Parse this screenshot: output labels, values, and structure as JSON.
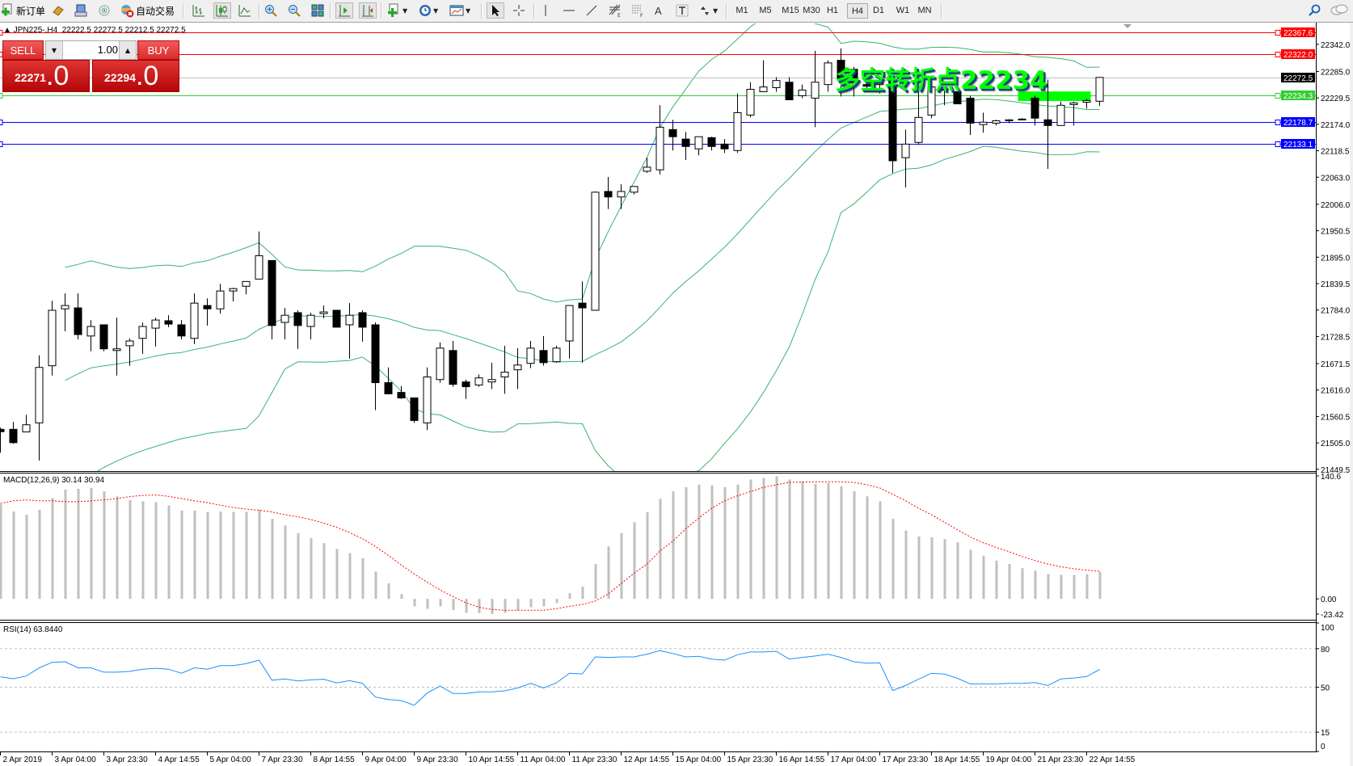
{
  "toolbar": {
    "new_order_label": "新订单",
    "auto_trading_label": "自动交易",
    "timeframes": [
      "M1",
      "M5",
      "M15",
      "M30",
      "H1",
      "H4",
      "D1",
      "W1",
      "MN"
    ],
    "active_timeframe": "H4",
    "icons": [
      "new-order-icon",
      "market-watch-icon",
      "navigator-icon",
      "signals-icon",
      "auto-trading-icon",
      "bar-chart-icon",
      "candlestick-icon",
      "line-chart-icon",
      "zoom-in-icon",
      "zoom-out-icon",
      "tile-windows-icon",
      "auto-scroll-icon",
      "chart-shift-icon",
      "indicators-icon",
      "periods-icon",
      "templates-icon",
      "cursor-icon",
      "crosshair-icon",
      "vertical-line-icon",
      "horizontal-line-icon",
      "trendline-icon",
      "fibonacci-icon",
      "fibonacci-fan-icon",
      "text-icon",
      "text-label-icon",
      "arrows-icon",
      "search-icon",
      "chat-icon"
    ]
  },
  "chart_header": {
    "symbol": "JPN225-,H4",
    "ohlc": "22222.5 22272.5 22212.5 22272.5"
  },
  "one_click": {
    "sell_label": "SELL",
    "buy_label": "BUY",
    "lot": "1.00",
    "sell_price_main": "22271",
    "sell_price_frac": ".0",
    "buy_price_main": "22294",
    "buy_price_frac": ".0"
  },
  "annotation": {
    "text": "多空转折点22234",
    "color": "#00ff00"
  },
  "colors": {
    "bollinger": "#3cb371",
    "macd_hist": "#c0c0c0",
    "macd_signal": "#ff0000",
    "rsi": "#1e90ff",
    "bull_body": "#ffffff",
    "bear_body": "#000000"
  },
  "chart_data": {
    "type": "candlestick",
    "symbol": "JPN225-",
    "timeframe": "H4",
    "ylim": [
      21445.8,
      22385.9
    ],
    "grid": false,
    "price_ticks": [
      "22342.0",
      "22285.0",
      "22229.5",
      "22174.0",
      "22118.5",
      "22063.0",
      "22006.0",
      "21950.5",
      "21895.0",
      "21839.5",
      "21784.0",
      "21728.5",
      "21671.5",
      "21616.0",
      "21560.5",
      "21505.0",
      "21449.5"
    ],
    "time_labels": [
      "2 Apr 2019",
      "3 Apr 04:00",
      "3 Apr 23:30",
      "4 Apr 14:55",
      "5 Apr 04:00",
      "7 Apr 23:30",
      "8 Apr 14:55",
      "9 Apr 04:00",
      "9 Apr 23:30",
      "10 Apr 14:55",
      "11 Apr 04:00",
      "11 Apr 23:30",
      "12 Apr 14:55",
      "15 Apr 04:00",
      "15 Apr 23:30",
      "16 Apr 14:55",
      "17 Apr 04:00",
      "17 Apr 23:30",
      "18 Apr 14:55",
      "19 Apr 04:00",
      "21 Apr 23:30",
      "22 Apr 14:55"
    ],
    "time_label_every": 4,
    "ohlc": [
      [
        21533.5,
        21537,
        21484.5,
        21528.5
      ],
      [
        21533.5,
        21549,
        21503,
        21505.5
      ],
      [
        21528,
        21564,
        21528,
        21543
      ],
      [
        21547,
        21689,
        21468,
        21663.5
      ],
      [
        21667,
        21803.5,
        21646.5,
        21783.5
      ],
      [
        21786.5,
        21819,
        21739.5,
        21793.5
      ],
      [
        21788.5,
        21819,
        21722.5,
        21732.5
      ],
      [
        21729.5,
        21763,
        21697.5,
        21749.5
      ],
      [
        21753,
        21753,
        21697.5,
        21702.5
      ],
      [
        21699,
        21768,
        21646.5,
        21702.5
      ],
      [
        21709,
        21724.5,
        21667,
        21719
      ],
      [
        21724.5,
        21758,
        21692,
        21749.5
      ],
      [
        21746,
        21768,
        21707.5,
        21763
      ],
      [
        21761.5,
        21773,
        21748,
        21754.5
      ],
      [
        21753,
        21763,
        21722.5,
        21729.5
      ],
      [
        21724.5,
        21819,
        21712.5,
        21798.5
      ],
      [
        21793.5,
        21808.5,
        21751.5,
        21786.5
      ],
      [
        21786.5,
        21839,
        21776.5,
        21824
      ],
      [
        21824,
        21830.5,
        21802,
        21829
      ],
      [
        21834,
        21844,
        21817,
        21844
      ],
      [
        21849,
        21949,
        21849,
        21898
      ],
      [
        21888,
        21888,
        21722.5,
        21751.5
      ],
      [
        21758,
        21788.5,
        21722.5,
        21773
      ],
      [
        21778.5,
        21783.5,
        21702.5,
        21751.5
      ],
      [
        21749.5,
        21778.5,
        21722.5,
        21773
      ],
      [
        21776.5,
        21793.5,
        21766.5,
        21780
      ],
      [
        21783.5,
        21783.5,
        21748,
        21748
      ],
      [
        21753,
        21798.5,
        21682,
        21773
      ],
      [
        21778.5,
        21783.5,
        21717.5,
        21748
      ],
      [
        21753,
        21758,
        21574,
        21631.5
      ],
      [
        21631.5,
        21663.5,
        21608,
        21608
      ],
      [
        21611,
        21624.5,
        21597.5,
        21599.5
      ],
      [
        21599.5,
        21599.5,
        21547,
        21552
      ],
      [
        21547,
        21663.5,
        21532,
        21643.5
      ],
      [
        21638,
        21716,
        21631.5,
        21704
      ],
      [
        21699,
        21719,
        21623,
        21628
      ],
      [
        21633,
        21638,
        21597.5,
        21623
      ],
      [
        21626.5,
        21648.5,
        21623,
        21641.5
      ],
      [
        21633,
        21673.5,
        21618,
        21638
      ],
      [
        21643.5,
        21709,
        21608,
        21653.5
      ],
      [
        21658.5,
        21704,
        21618,
        21668.5
      ],
      [
        21672,
        21719,
        21662,
        21704
      ],
      [
        21699,
        21729.5,
        21667,
        21673.5
      ],
      [
        21675.5,
        21709,
        21673.5,
        21704
      ],
      [
        21719,
        21793.5,
        21682,
        21793.5
      ],
      [
        21798.5,
        21844,
        21673.5,
        21788.5
      ],
      [
        21783.5,
        22033,
        21783.5,
        22031.5
      ],
      [
        22033,
        22063.5,
        21996,
        22021.5
      ],
      [
        22021.5,
        22048.5,
        21996,
        22033
      ],
      [
        22031.5,
        22043.5,
        22026.5,
        22043.5
      ],
      [
        22075.5,
        22104,
        22072,
        22084
      ],
      [
        22078.5,
        22214,
        22068.5,
        22168
      ],
      [
        22163,
        22183.5,
        22119,
        22148
      ],
      [
        22143,
        22158,
        22099,
        22127.5
      ],
      [
        22122.5,
        22148,
        22109,
        22148
      ],
      [
        22146,
        22148,
        22119,
        22127.5
      ],
      [
        22132.5,
        22143,
        22114,
        22122.5
      ],
      [
        22119,
        22239,
        22114,
        22198.5
      ],
      [
        22193.5,
        22262.5,
        22188.5,
        22247.5
      ],
      [
        22242.5,
        22308.5,
        22242.5,
        22252.5
      ],
      [
        22251,
        22273,
        22242.5,
        22266
      ],
      [
        22262.5,
        22273,
        22225.5,
        22225.5
      ],
      [
        22234,
        22257.5,
        22229,
        22246
      ],
      [
        22229,
        22328.5,
        22168,
        22262.5
      ],
      [
        22257.5,
        22308.5,
        22242.5,
        22303
      ],
      [
        22308.5,
        22333.5,
        22232.5,
        22269.5
      ],
      [
        22289.5,
        22295,
        22232.5,
        22261
      ],
      [
        22257.5,
        22266,
        22247.5,
        22254
      ],
      [
        22257.5,
        22269.5,
        22239,
        22262.5
      ],
      [
        22268,
        22268,
        22072,
        22097.5
      ],
      [
        22104,
        22163,
        22041.5,
        22132.5
      ],
      [
        22136,
        22242.5,
        22131,
        22188.5
      ],
      [
        22193.5,
        22252.5,
        22187,
        22252.5
      ],
      [
        22247.5,
        22249,
        22214,
        22246
      ],
      [
        22242.5,
        22242.5,
        22217,
        22217
      ],
      [
        22229,
        22234,
        22151.5,
        22176.5
      ],
      [
        22173.5,
        22198.5,
        22156.5,
        22178.5
      ],
      [
        22176.5,
        22183.5,
        22171.5,
        22181.5
      ],
      [
        22181.5,
        22185,
        22176.5,
        22183.5
      ],
      [
        22185,
        22187,
        22183.5,
        22183.5
      ],
      [
        22229,
        22234,
        22171.5,
        22187
      ],
      [
        22183.5,
        22268,
        22080.5,
        22171.5
      ],
      [
        22171.5,
        22222,
        22171.5,
        22214
      ],
      [
        22215.5,
        22222,
        22171.5,
        22219
      ],
      [
        22220.5,
        22227.5,
        22207,
        22224
      ],
      [
        22222.5,
        22272.5,
        22212.5,
        22272.5
      ]
    ],
    "bollinger": {
      "period": 20,
      "deviation": 2
    },
    "levels": [
      {
        "price": "22367.6",
        "color": "#ff0000",
        "label_text": "#ffffff"
      },
      {
        "price": "22322.0",
        "color": "#ff0000",
        "label_text": "#ffffff"
      },
      {
        "price": "22272.5",
        "color": "#c0c0c0",
        "label_bg": "#000000",
        "label_text": "#ffffff",
        "kind": "bid"
      },
      {
        "price": "22234.3",
        "color": "#32cd32",
        "label_text": "#ffffff"
      },
      {
        "price": "22178.7",
        "color": "#0000ff",
        "label_text": "#ffffff"
      },
      {
        "price": "22133.1",
        "color": "#0000ff",
        "label_text": "#ffffff"
      }
    ],
    "highlight_zone": {
      "from_price": 22223,
      "to_price": 22243,
      "from_bar": 79,
      "to_bar": 84,
      "color": "#00ff00"
    },
    "macd": {
      "label": "MACD(12,26,9) 30.14 30.94",
      "ylim": [
        -23.42,
        140.6
      ],
      "axis_labels": [
        "140.6",
        "0.00",
        "-23.42"
      ],
      "histogram": [
        106,
        98,
        94.4,
        100,
        113,
        122.5,
        123.4,
        124.4,
        120.6,
        115,
        111,
        109.4,
        108.4,
        104.7,
        99,
        99,
        97.5,
        98,
        97.5,
        97.5,
        100,
        89.7,
        82.2,
        73.8,
        68.1,
        62.5,
        55.9,
        51.3,
        45.6,
        30.6,
        17.5,
        5.3,
        -8.4,
        -11.3,
        -8.4,
        -12.5,
        -15.6,
        -15.9,
        -16.9,
        -15.6,
        -13.1,
        -9.4,
        -8.4,
        -4.7,
        6.3,
        13.8,
        39,
        58.8,
        73.8,
        86,
        97.2,
        112.2,
        120.6,
        125.3,
        128.1,
        127.2,
        125.3,
        128.1,
        133.8,
        135.6,
        137.5,
        133.8,
        131.9,
        129,
        130,
        126.3,
        120.6,
        115,
        109.4,
        89.7,
        76.6,
        70,
        69,
        67.2,
        63.4,
        55,
        48.4,
        42.8,
        39,
        34.4,
        31.6,
        27.8,
        26.9,
        26.9,
        27.8,
        30.14
      ],
      "signal": [
        107,
        110,
        111,
        110,
        110,
        109,
        109,
        110,
        111,
        112.5,
        114.7,
        116,
        116.5,
        115,
        112.5,
        110,
        108,
        105,
        102.5,
        100.6,
        99.4,
        97.5,
        94.4,
        92,
        89,
        85,
        80.3,
        74.4,
        67.5,
        58.8,
        48.8,
        38,
        28,
        18.8,
        10,
        2.5,
        -4.4,
        -9.4,
        -11.9,
        -12.8,
        -12.8,
        -12.8,
        -12.8,
        -11,
        -8.4,
        -6.25,
        -2.5,
        5.6,
        17.2,
        28.75,
        39,
        53.75,
        64.7,
        78.75,
        90.6,
        101.6,
        110,
        115.6,
        120.3,
        125,
        128,
        130.6,
        131,
        131.25,
        131.25,
        131.25,
        130.6,
        128,
        124.4,
        117.2,
        110,
        101.6,
        94.4,
        86,
        77.5,
        69.4,
        63,
        57.8,
        53,
        47.5,
        43,
        39,
        36,
        33.75,
        32.2,
        30.94
      ]
    },
    "rsi": {
      "label": "RSI(14) 63.8440",
      "ylim": [
        0,
        100
      ],
      "levels": [
        80,
        50,
        15
      ],
      "axis_labels": [
        "100",
        "80",
        "50",
        "15",
        "0"
      ],
      "values": [
        58.1,
        56.6,
        58.7,
        65.1,
        69.4,
        69.8,
        65.1,
        65.1,
        61.7,
        61.7,
        62.3,
        64,
        64.7,
        64,
        60.9,
        65.1,
        64,
        66.8,
        66.8,
        68.3,
        71.1,
        55.5,
        56.4,
        54.9,
        55.7,
        56.2,
        53.4,
        55.1,
        53,
        42.3,
        40.4,
        39.6,
        36,
        45.5,
        50.9,
        45.1,
        45.1,
        46.4,
        46.4,
        47.2,
        49.4,
        53,
        49.4,
        53.4,
        60.9,
        60.4,
        73.6,
        73.2,
        73.6,
        73.6,
        75.7,
        78.5,
        76.2,
        73.6,
        74,
        71.9,
        71.1,
        75.3,
        77.4,
        77.4,
        77.9,
        71.9,
        73.2,
        74.3,
        75.7,
        73.2,
        69.8,
        68.7,
        68.9,
        47.4,
        51.3,
        56.2,
        60.9,
        60.2,
        57,
        52.6,
        52.6,
        52.6,
        53,
        53,
        53.6,
        51.3,
        56.4,
        57.2,
        58.3,
        63.844
      ]
    }
  }
}
